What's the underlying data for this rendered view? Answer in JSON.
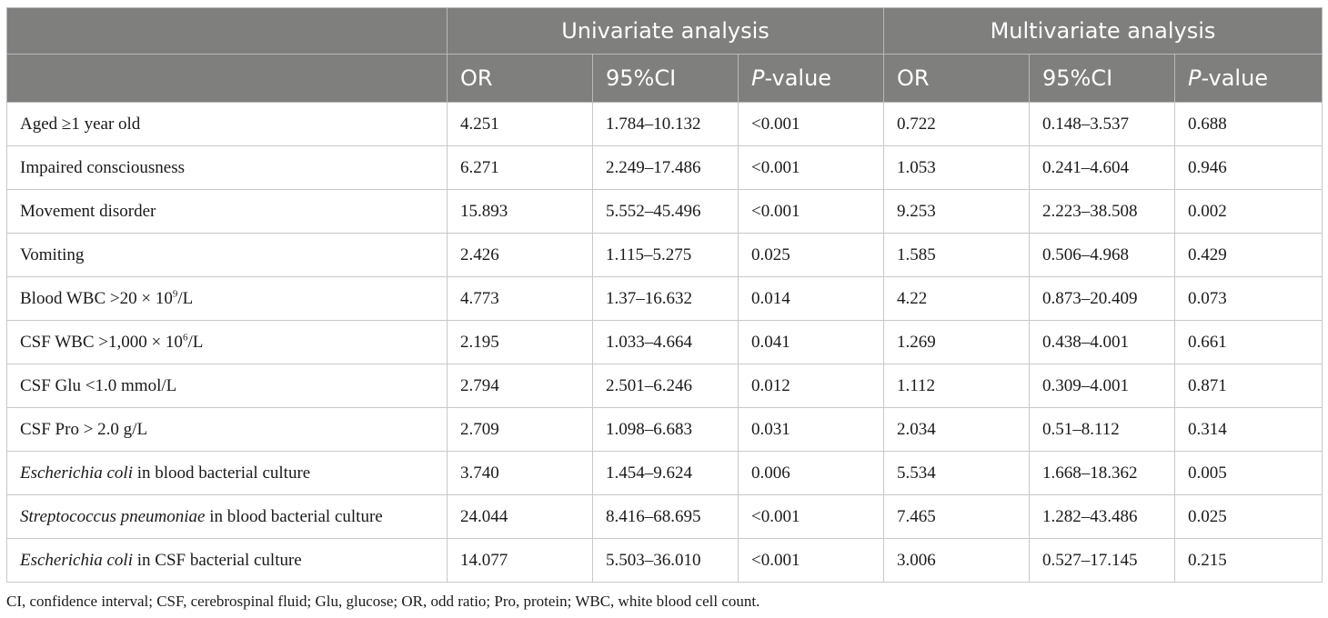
{
  "table": {
    "group_headers": {
      "left": "",
      "univariate": "Univariate analysis",
      "multivariate": "Multivariate analysis"
    },
    "sub_headers": {
      "or": "OR",
      "ci": "95%CI",
      "p_italic": "P",
      "p_rest": "-value"
    },
    "rows": [
      {
        "label": [
          "Aged ≥1 year old"
        ],
        "u_or": "4.251",
        "u_ci": "1.784–10.132",
        "u_p": "<0.001",
        "m_or": "0.722",
        "m_ci": "0.148–3.537",
        "m_p": "0.688"
      },
      {
        "label": [
          "Impaired consciousness"
        ],
        "u_or": "6.271",
        "u_ci": "2.249–17.486",
        "u_p": "<0.001",
        "m_or": "1.053",
        "m_ci": "0.241–4.604",
        "m_p": "0.946"
      },
      {
        "label": [
          "Movement disorder"
        ],
        "u_or": "15.893",
        "u_ci": "5.552–45.496",
        "u_p": "<0.001",
        "m_or": "9.253",
        "m_ci": "2.223–38.508",
        "m_p": "0.002"
      },
      {
        "label": [
          "Vomiting"
        ],
        "u_or": "2.426",
        "u_ci": "1.115–5.275",
        "u_p": "0.025",
        "m_or": "1.585",
        "m_ci": "0.506–4.968",
        "m_p": "0.429"
      },
      {
        "label": [
          "Blood WBC >20 × 10",
          "9",
          "/L"
        ],
        "u_or": "4.773",
        "u_ci": "1.37–16.632",
        "u_p": "0.014",
        "m_or": "4.22",
        "m_ci": "0.873–20.409",
        "m_p": "0.073"
      },
      {
        "label": [
          "CSF WBC >1,000 × 10",
          "6",
          "/L"
        ],
        "u_or": "2.195",
        "u_ci": "1.033–4.664",
        "u_p": "0.041",
        "m_or": "1.269",
        "m_ci": "0.438–4.001",
        "m_p": "0.661"
      },
      {
        "label": [
          "CSF Glu <1.0 mmol/L"
        ],
        "u_or": "2.794",
        "u_ci": "2.501–6.246",
        "u_p": "0.012",
        "m_or": "1.112",
        "m_ci": "0.309–4.001",
        "m_p": "0.871"
      },
      {
        "label": [
          "CSF Pro > 2.0 g/L"
        ],
        "u_or": "2.709",
        "u_ci": "1.098–6.683",
        "u_p": "0.031",
        "m_or": "2.034",
        "m_ci": "0.51–8.112",
        "m_p": "0.314"
      },
      {
        "label": [
          "Escherichia coli",
          " in blood bacterial culture"
        ],
        "u_or": "3.740",
        "u_ci": "1.454–9.624",
        "u_p": "0.006",
        "m_or": "5.534",
        "m_ci": "1.668–18.362",
        "m_p": "0.005"
      },
      {
        "label": [
          "Streptococcus pneumoniae",
          " in blood bacterial culture"
        ],
        "u_or": "24.044",
        "u_ci": "8.416–68.695",
        "u_p": "<0.001",
        "m_or": "7.465",
        "m_ci": "1.282–43.486",
        "m_p": "0.025"
      },
      {
        "label": [
          "Escherichia coli",
          " in CSF bacterial culture"
        ],
        "u_or": "14.077",
        "u_ci": "5.503–36.010",
        "u_p": "<0.001",
        "m_or": "3.006",
        "m_ci": "0.527–17.145",
        "m_p": "0.215"
      }
    ]
  },
  "footnote": "CI, confidence interval; CSF, cerebrospinal fluid; Glu, glucose; OR, odd ratio; Pro, protein; WBC, white blood cell count.",
  "colors": {
    "header_bg": "#7f7f7e",
    "header_text": "#ffffff",
    "grid": "#c8c8c8"
  }
}
